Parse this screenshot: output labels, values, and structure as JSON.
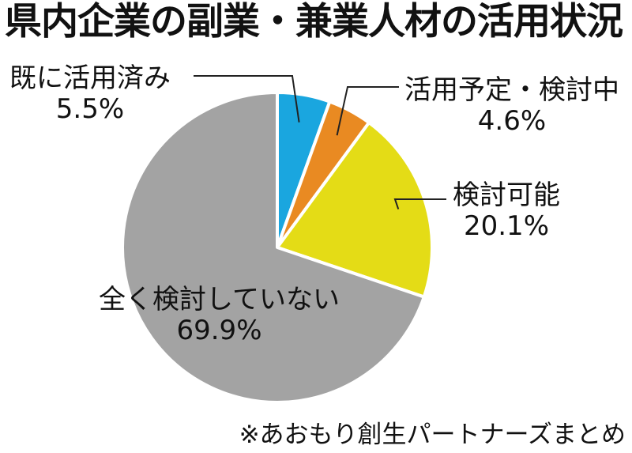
{
  "title": "県内企業の副業・兼業人材の活用状況",
  "source": "※あおもり創生パートナーズまとめ",
  "chart_data": {
    "type": "pie",
    "title": "県内企業の副業・兼業人材の活用状況",
    "slices": [
      {
        "label": "既に活用済み",
        "value": 5.5,
        "value_label": "5.5%",
        "color": "#1aa6df"
      },
      {
        "label": "活用予定・検討中",
        "value": 4.6,
        "value_label": "4.6%",
        "color": "#e98a22"
      },
      {
        "label": "検討可能",
        "value": 20.1,
        "value_label": "20.1%",
        "color": "#e4dc16"
      },
      {
        "label": "全く検討していない",
        "value": 69.9,
        "value_label": "69.9%",
        "color": "#a3a3a3"
      }
    ]
  }
}
